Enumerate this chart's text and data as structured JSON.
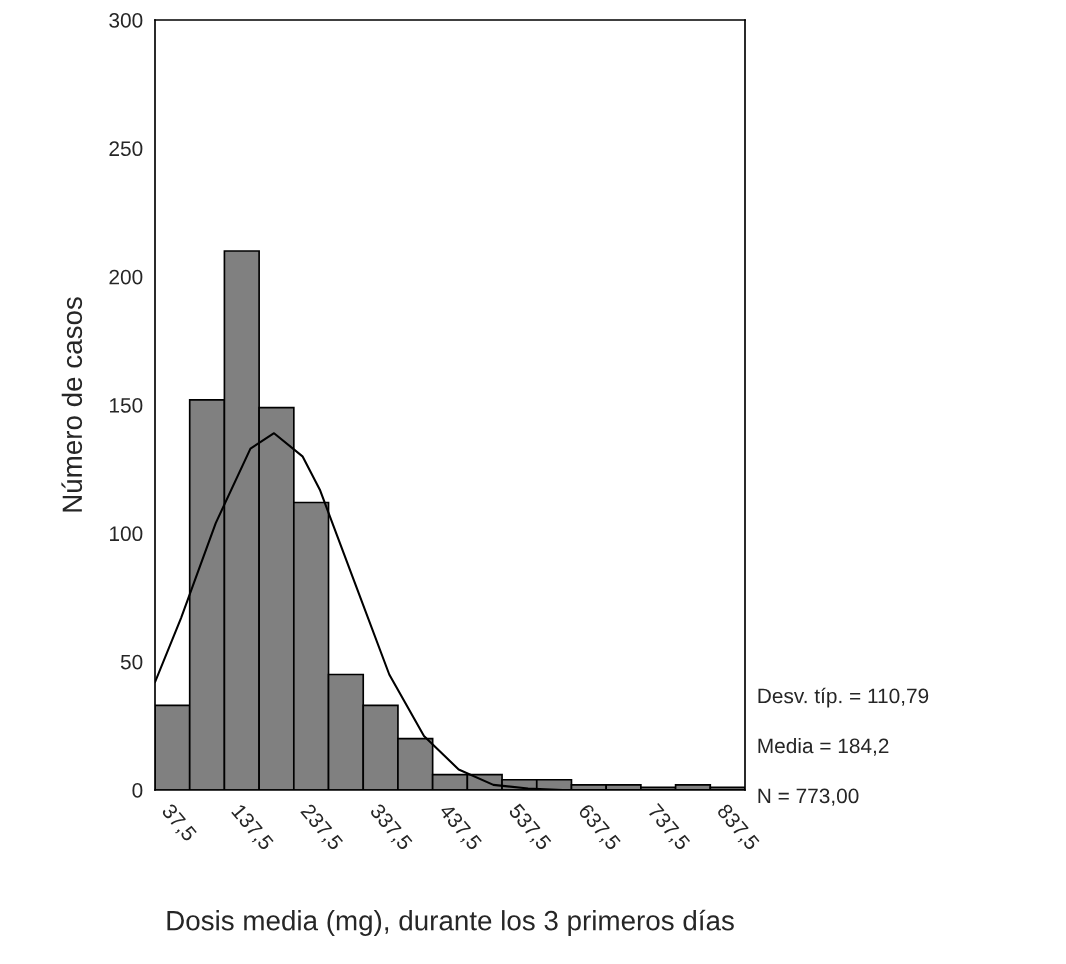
{
  "chart_data": {
    "type": "histogram",
    "xlabel": "Dosis media (mg), durante los 3 primeros días",
    "ylabel": "Número de casos",
    "bins": [
      12.5,
      62.5,
      112.5,
      162.5,
      212.5,
      262.5,
      312.5,
      362.5,
      412.5,
      462.5,
      512.5,
      562.5,
      612.5,
      662.5,
      712.5,
      762.5,
      812.5,
      862.5
    ],
    "values": [
      33,
      152,
      210,
      149,
      112,
      45,
      33,
      20,
      6,
      6,
      4,
      4,
      2,
      2,
      1,
      2,
      1
    ],
    "color": "#808080",
    "series": [
      {
        "type": "line",
        "color": "#000000",
        "x": [
          12.5,
          50,
          100,
          150,
          184,
          225,
          250,
          300,
          350,
          400,
          450,
          500,
          550,
          600,
          862.5
        ],
        "values": [
          42,
          67,
          104,
          133,
          139,
          130,
          117,
          81,
          45,
          21,
          8,
          2,
          0.6,
          0,
          0
        ]
      }
    ],
    "xlim": [
      12.5,
      862.5
    ],
    "xticks": [
      {
        "value": 37.5,
        "label": "37,5"
      },
      {
        "value": 137.5,
        "label": "137,5"
      },
      {
        "value": 237.5,
        "label": "237,5"
      },
      {
        "value": 337.5,
        "label": "337,5"
      },
      {
        "value": 437.5,
        "label": "437,5"
      },
      {
        "value": 537.5,
        "label": "537,5"
      },
      {
        "value": 637.5,
        "label": "637,5"
      },
      {
        "value": 737.5,
        "label": "737,5"
      },
      {
        "value": 837.5,
        "label": "837,5"
      }
    ],
    "ylim": [
      0,
      300
    ],
    "yticks": [
      0,
      50,
      100,
      150,
      200,
      250,
      300
    ],
    "annotations": [
      "Desv. típ. = 110,79",
      "Media = 184,2",
      "N = 773,00"
    ],
    "grid": false,
    "legend": false
  }
}
